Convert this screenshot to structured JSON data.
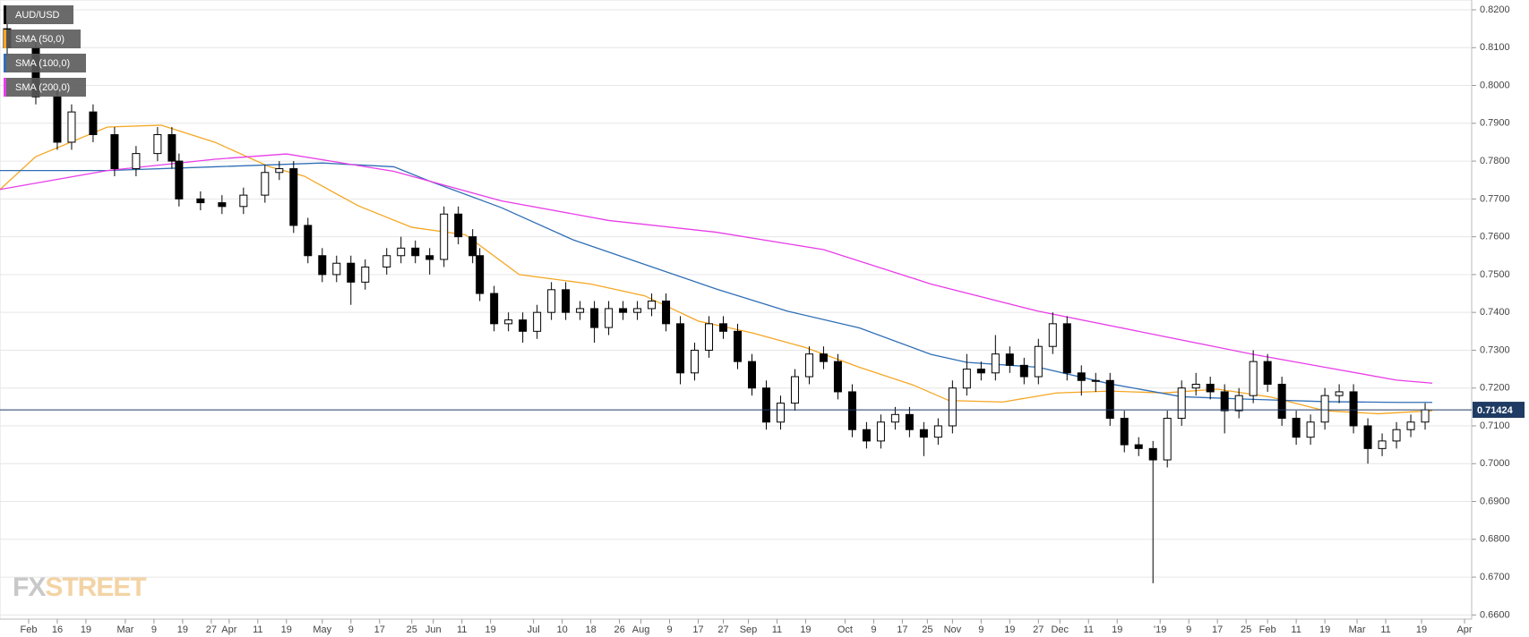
{
  "chart_data": {
    "type": "candlestick",
    "name": "AUD/USD",
    "up_color": "#ffffff",
    "down_color": "#000000",
    "x": [
      2,
      10,
      16,
      20,
      26,
      32,
      38,
      44,
      48,
      50,
      56,
      62,
      68,
      74,
      78,
      82,
      86,
      90,
      94,
      98,
      102,
      108,
      112,
      116,
      120,
      124,
      128,
      132,
      134,
      138,
      142,
      146,
      150,
      154,
      158,
      162,
      166,
      170,
      174,
      178,
      182,
      186,
      190,
      194,
      198,
      202,
      206,
      210,
      214,
      218,
      222,
      226,
      230,
      234,
      238,
      242,
      246,
      250,
      254,
      258,
      262,
      266,
      270,
      274,
      278,
      282,
      286,
      290,
      294,
      298,
      302,
      306,
      310,
      314,
      318,
      322,
      326,
      330,
      334,
      338,
      342,
      346,
      350,
      354,
      358,
      362,
      366,
      370,
      374,
      378,
      382,
      386,
      390,
      394,
      398
    ],
    "open": [
      0.815,
      0.81,
      0.797,
      0.785,
      0.793,
      0.787,
      0.778,
      0.782,
      0.787,
      0.78,
      0.77,
      0.769,
      0.768,
      0.771,
      0.777,
      0.778,
      0.763,
      0.755,
      0.75,
      0.753,
      0.748,
      0.752,
      0.755,
      0.757,
      0.755,
      0.754,
      0.766,
      0.76,
      0.755,
      0.745,
      0.737,
      0.738,
      0.735,
      0.74,
      0.746,
      0.74,
      0.741,
      0.736,
      0.741,
      0.74,
      0.741,
      0.743,
      0.737,
      0.724,
      0.73,
      0.737,
      0.735,
      0.727,
      0.72,
      0.711,
      0.716,
      0.723,
      0.729,
      0.727,
      0.719,
      0.709,
      0.706,
      0.711,
      0.713,
      0.709,
      0.707,
      0.71,
      0.72,
      0.725,
      0.724,
      0.729,
      0.726,
      0.723,
      0.731,
      0.737,
      0.724,
      0.722,
      0.722,
      0.712,
      0.705,
      0.704,
      0.701,
      0.712,
      0.72,
      0.721,
      0.719,
      0.714,
      0.718,
      0.727,
      0.721,
      0.712,
      0.707,
      0.711,
      0.718,
      0.719,
      0.71,
      0.704,
      0.706,
      0.709,
      0.711
    ],
    "high": [
      0.817,
      0.812,
      0.799,
      0.795,
      0.795,
      0.789,
      0.784,
      0.789,
      0.789,
      0.782,
      0.772,
      0.771,
      0.773,
      0.779,
      0.78,
      0.78,
      0.765,
      0.757,
      0.755,
      0.755,
      0.754,
      0.757,
      0.76,
      0.759,
      0.757,
      0.768,
      0.768,
      0.762,
      0.757,
      0.747,
      0.74,
      0.74,
      0.742,
      0.748,
      0.748,
      0.743,
      0.743,
      0.743,
      0.743,
      0.743,
      0.745,
      0.745,
      0.739,
      0.732,
      0.739,
      0.739,
      0.737,
      0.729,
      0.722,
      0.718,
      0.725,
      0.731,
      0.731,
      0.729,
      0.721,
      0.711,
      0.713,
      0.715,
      0.715,
      0.711,
      0.712,
      0.722,
      0.729,
      0.727,
      0.734,
      0.731,
      0.728,
      0.733,
      0.74,
      0.739,
      0.726,
      0.724,
      0.724,
      0.714,
      0.707,
      0.706,
      0.714,
      0.722,
      0.724,
      0.723,
      0.721,
      0.72,
      0.73,
      0.729,
      0.723,
      0.714,
      0.713,
      0.72,
      0.721,
      0.721,
      0.712,
      0.708,
      0.711,
      0.713,
      0.716
    ],
    "low": [
      0.808,
      0.795,
      0.783,
      0.783,
      0.785,
      0.776,
      0.776,
      0.78,
      0.778,
      0.768,
      0.767,
      0.766,
      0.766,
      0.769,
      0.775,
      0.761,
      0.753,
      0.748,
      0.748,
      0.742,
      0.746,
      0.75,
      0.753,
      0.753,
      0.75,
      0.752,
      0.758,
      0.753,
      0.743,
      0.735,
      0.735,
      0.732,
      0.733,
      0.738,
      0.738,
      0.738,
      0.732,
      0.734,
      0.738,
      0.738,
      0.739,
      0.735,
      0.721,
      0.722,
      0.728,
      0.733,
      0.725,
      0.718,
      0.709,
      0.709,
      0.714,
      0.721,
      0.725,
      0.717,
      0.707,
      0.704,
      0.704,
      0.709,
      0.707,
      0.702,
      0.705,
      0.708,
      0.718,
      0.722,
      0.722,
      0.724,
      0.721,
      0.721,
      0.729,
      0.722,
      0.718,
      0.719,
      0.71,
      0.703,
      0.702,
      0.6684,
      0.699,
      0.71,
      0.718,
      0.717,
      0.708,
      0.712,
      0.716,
      0.719,
      0.71,
      0.705,
      0.705,
      0.709,
      0.716,
      0.708,
      0.7,
      0.702,
      0.704,
      0.707,
      0.709
    ],
    "close": [
      0.81,
      0.797,
      0.785,
      0.793,
      0.787,
      0.778,
      0.782,
      0.787,
      0.78,
      0.77,
      0.769,
      0.768,
      0.771,
      0.777,
      0.778,
      0.763,
      0.755,
      0.75,
      0.753,
      0.748,
      0.752,
      0.755,
      0.757,
      0.755,
      0.754,
      0.766,
      0.76,
      0.755,
      0.745,
      0.737,
      0.738,
      0.735,
      0.74,
      0.746,
      0.74,
      0.741,
      0.736,
      0.741,
      0.74,
      0.741,
      0.743,
      0.737,
      0.724,
      0.73,
      0.737,
      0.735,
      0.727,
      0.72,
      0.711,
      0.716,
      0.723,
      0.729,
      0.727,
      0.719,
      0.709,
      0.706,
      0.711,
      0.713,
      0.709,
      0.707,
      0.71,
      0.72,
      0.725,
      0.724,
      0.729,
      0.726,
      0.723,
      0.731,
      0.737,
      0.724,
      0.722,
      0.722,
      0.712,
      0.705,
      0.704,
      0.701,
      0.712,
      0.72,
      0.721,
      0.719,
      0.714,
      0.718,
      0.727,
      0.721,
      0.712,
      0.707,
      0.711,
      0.718,
      0.719,
      0.71,
      0.704,
      0.706,
      0.709,
      0.711,
      0.71424
    ],
    "series": [
      {
        "name": "SMA (50,0)",
        "color": "#f5a623",
        "x": [
          0,
          10,
          30,
          45,
          60,
          75,
          85,
          100,
          115,
          130,
          145,
          165,
          180,
          195,
          210,
          225,
          240,
          255,
          265,
          280,
          295,
          310,
          325,
          340,
          355,
          370,
          385,
          400
        ],
        "values": [
          0.7725,
          0.7812,
          0.789,
          0.7895,
          0.785,
          0.7786,
          0.776,
          0.7682,
          0.7625,
          0.7605,
          0.75,
          0.7475,
          0.7444,
          0.7377,
          0.7346,
          0.7307,
          0.7255,
          0.7208,
          0.7167,
          0.7163,
          0.7187,
          0.7192,
          0.7187,
          0.7197,
          0.7176,
          0.714,
          0.7132,
          0.714
        ]
      },
      {
        "name": "SMA (100,0)",
        "color": "#2f6eb5",
        "x": [
          0,
          30,
          60,
          90,
          110,
          120,
          140,
          160,
          180,
          200,
          220,
          240,
          260,
          270,
          290,
          310,
          330,
          350,
          370,
          390,
          400
        ],
        "values": [
          0.7775,
          0.7775,
          0.7785,
          0.7795,
          0.7785,
          0.7747,
          0.7677,
          0.7592,
          0.7527,
          0.7462,
          0.7403,
          0.7359,
          0.7289,
          0.7268,
          0.7255,
          0.7211,
          0.7177,
          0.717,
          0.7164,
          0.7162,
          0.7162
        ]
      },
      {
        "name": "SMA (200,0)",
        "color": "#e83ce8",
        "x": [
          0,
          30,
          60,
          80,
          110,
          140,
          170,
          200,
          230,
          260,
          290,
          320,
          350,
          370,
          390,
          400
        ],
        "values": [
          0.7725,
          0.7775,
          0.7805,
          0.7819,
          0.7773,
          0.7695,
          0.7643,
          0.7612,
          0.7566,
          0.7475,
          0.7403,
          0.7346,
          0.7289,
          0.7255,
          0.7221,
          0.7213
        ]
      }
    ],
    "last_price": 0.71424,
    "xlim": [
      0,
      411
    ],
    "ylim": [
      0.6589,
      0.8226
    ],
    "grid": true,
    "xticks": [
      {
        "value": 8,
        "label": "Feb"
      },
      16,
      {
        "value": 24,
        "label": "19"
      },
      {
        "value": 35,
        "label": "Mar"
      },
      {
        "value": 43,
        "label": "9"
      },
      {
        "value": 51,
        "label": "19"
      },
      {
        "value": 59,
        "label": "27"
      },
      {
        "value": 64,
        "label": "Apr"
      },
      {
        "value": 72,
        "label": "11"
      },
      {
        "value": 80,
        "label": "19"
      },
      {
        "value": 90,
        "label": "May"
      },
      {
        "value": 98,
        "label": "9"
      },
      {
        "value": 106,
        "label": "17"
      },
      {
        "value": 115,
        "label": "25"
      },
      {
        "value": 121,
        "label": "Jun"
      },
      {
        "value": 129,
        "label": "11"
      },
      {
        "value": 137,
        "label": "19"
      },
      {
        "value": 149,
        "label": "Jul"
      },
      {
        "value": 157,
        "label": "10"
      },
      {
        "value": 165,
        "label": "18"
      },
      {
        "value": 173,
        "label": "26"
      },
      {
        "value": 179,
        "label": "Aug"
      },
      {
        "value": 187,
        "label": "9"
      },
      {
        "value": 195,
        "label": "17"
      },
      {
        "value": 202,
        "label": "27"
      },
      {
        "value": 209,
        "label": "Sep"
      },
      {
        "value": 217,
        "label": "11"
      },
      {
        "value": 225,
        "label": "19"
      },
      {
        "value": 236,
        "label": "Oct"
      },
      {
        "value": 244,
        "label": "9"
      },
      {
        "value": 252,
        "label": "17"
      },
      {
        "value": 259,
        "label": "25"
      },
      {
        "value": 266,
        "label": "Nov"
      },
      {
        "value": 274,
        "label": "9"
      },
      {
        "value": 282,
        "label": "19"
      },
      {
        "value": 290,
        "label": "27"
      },
      {
        "value": 296,
        "label": "Dec"
      },
      {
        "value": 304,
        "label": "11"
      },
      {
        "value": 312,
        "label": "19"
      },
      {
        "value": 324,
        "label": "'19"
      },
      {
        "value": 332,
        "label": "9"
      },
      {
        "value": 340,
        "label": "17"
      },
      {
        "value": 348,
        "label": "25"
      },
      {
        "value": 354,
        "label": "Feb"
      },
      {
        "value": 362,
        "label": "11"
      },
      {
        "value": 370,
        "label": "19"
      },
      {
        "value": 379,
        "label": "Mar"
      },
      {
        "value": 387,
        "label": "11"
      },
      {
        "value": 397,
        "label": "19"
      },
      {
        "value": 409,
        "label": "Apr"
      }
    ],
    "yticks": [
      {
        "value": 0.66,
        "label": "0.6600"
      },
      {
        "value": 0.67,
        "label": "0.6700"
      },
      {
        "value": 0.68,
        "label": "0.6800"
      },
      {
        "value": 0.69,
        "label": "0.6900"
      },
      {
        "value": 0.7,
        "label": "0.7000"
      },
      {
        "value": 0.71,
        "label": "0.7100"
      },
      {
        "value": 0.72,
        "label": "0.7200"
      },
      {
        "value": 0.73,
        "label": "0.7300"
      },
      {
        "value": 0.74,
        "label": "0.7400"
      },
      {
        "value": 0.75,
        "label": "0.7500"
      },
      {
        "value": 0.76,
        "label": "0.7600"
      },
      {
        "value": 0.77,
        "label": "0.7700"
      },
      {
        "value": 0.78,
        "label": "0.7800"
      },
      {
        "value": 0.79,
        "label": "0.7900"
      },
      {
        "value": 0.8,
        "label": "0.8000"
      },
      {
        "value": 0.81,
        "label": "0.8100"
      },
      {
        "value": 0.82,
        "label": "0.8200"
      }
    ],
    "watermark": [
      "FX",
      "STREET"
    ]
  }
}
